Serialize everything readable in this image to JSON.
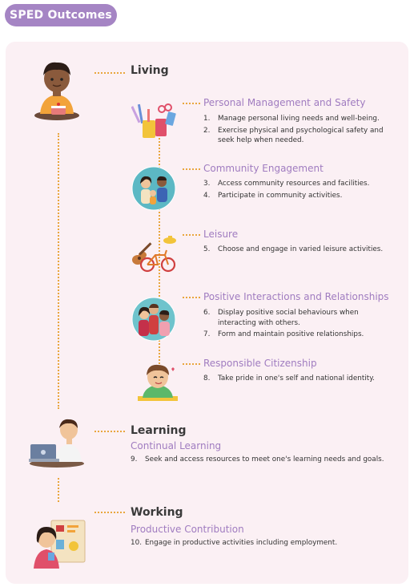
{
  "header": {
    "title": "SPED Outcomes"
  },
  "domains": [
    {
      "title": "Living"
    },
    {
      "title": "Learning"
    },
    {
      "title": "Working"
    }
  ],
  "living": {
    "sub": [
      {
        "title": "Personal Management and Safety",
        "items": [
          {
            "num": "1.",
            "text": "Manage personal living needs and well-being."
          },
          {
            "num": "2.",
            "text": "Exercise physical and psychological safety and seek help when needed."
          }
        ]
      },
      {
        "title": "Community Engagement",
        "items": [
          {
            "num": "3.",
            "text": "Access community resources and facilities."
          },
          {
            "num": "4.",
            "text": "Participate in community activities."
          }
        ]
      },
      {
        "title": "Leisure",
        "items": [
          {
            "num": "5.",
            "text": "Choose and engage in varied leisure activities."
          }
        ]
      },
      {
        "title": "Positive Interactions and Relationships",
        "items": [
          {
            "num": "6.",
            "text": "Display positive social behaviours when interacting with others."
          },
          {
            "num": "7.",
            "text": "Form and maintain positive relationships."
          }
        ]
      },
      {
        "title": "Responsible Citizenship",
        "items": [
          {
            "num": "8.",
            "text": "Take pride in one's self and national identity."
          }
        ]
      }
    ]
  },
  "learning": {
    "sub": {
      "title": "Continual Learning",
      "items": [
        {
          "num": "9.",
          "text": "Seek and access resources to meet one's learning needs and goals."
        }
      ]
    }
  },
  "working": {
    "sub": {
      "title": "Productive Contribution",
      "items": [
        {
          "num": "10.",
          "text": "Engage in productive activities including employment."
        }
      ]
    }
  },
  "colors": {
    "accent": "#a585c4",
    "subheading": "#a07cc0",
    "panel": "#fbf0f4",
    "connector": "#e9a63e"
  },
  "icons": [
    "boy-eating-icon",
    "stationery-icon",
    "community-icon",
    "guitar-bicycle-icon",
    "friends-icon",
    "proud-boy-icon",
    "student-laptop-icon",
    "worker-icon"
  ]
}
